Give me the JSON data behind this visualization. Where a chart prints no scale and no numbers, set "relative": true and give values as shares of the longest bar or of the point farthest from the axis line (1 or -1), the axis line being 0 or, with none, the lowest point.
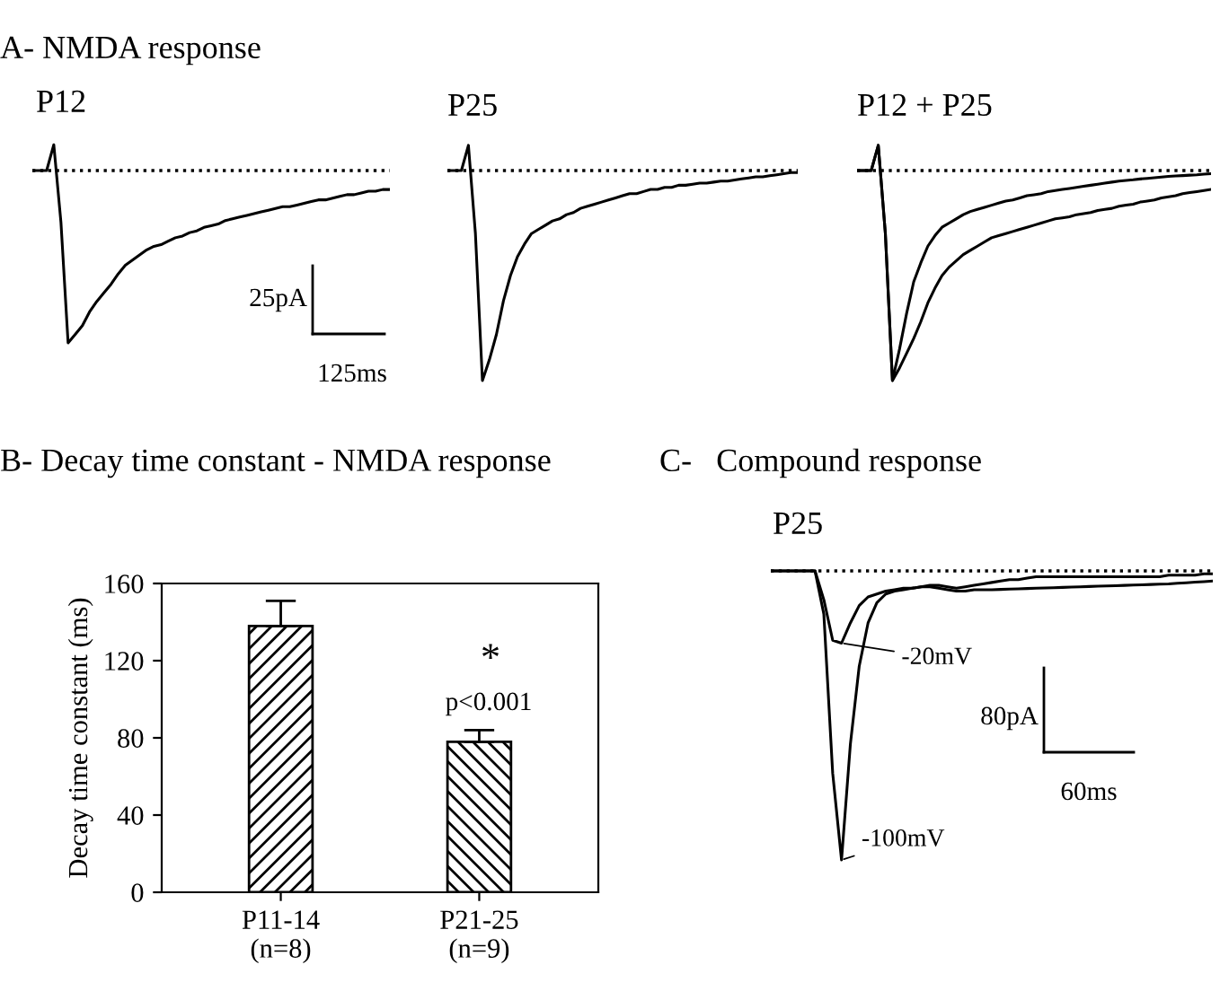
{
  "chart_data": [
    {
      "type": "line",
      "title": "A- NMDA response",
      "subtitle": "P12",
      "relative": true,
      "ref_lines": [
        {
          "axis": "y",
          "value": 0,
          "line_style": "dotted",
          "color": "#000000"
        }
      ],
      "annotations": [
        "25pA",
        "125ms"
      ],
      "categories": [
        null,
        null,
        null,
        null,
        null,
        null,
        null,
        null,
        null,
        null,
        null,
        null,
        null,
        null,
        null,
        null,
        null,
        null,
        null,
        null,
        null,
        null,
        null,
        null,
        null,
        null,
        null,
        null,
        null,
        null,
        null,
        null,
        null,
        null,
        null,
        null,
        null,
        null,
        null,
        null,
        null,
        null,
        null,
        null,
        null,
        null,
        null,
        null,
        null,
        null,
        null
      ],
      "series": [
        {
          "color": "#000000",
          "values": [
            0,
            0,
            0,
            0.15,
            -0.3,
            -1,
            -0.95,
            -0.9,
            -0.82,
            -0.76,
            -0.71,
            -0.66,
            -0.6,
            -0.55,
            -0.52,
            -0.49,
            -0.46,
            -0.44,
            -0.43,
            -0.41,
            -0.39,
            -0.38,
            -0.36,
            -0.35,
            -0.33,
            -0.32,
            -0.31,
            -0.29,
            -0.28,
            -0.27,
            -0.26,
            -0.25,
            -0.24,
            -0.23,
            -0.22,
            -0.21,
            -0.21,
            -0.2,
            -0.19,
            -0.18,
            -0.17,
            -0.17,
            -0.16,
            -0.15,
            -0.14,
            -0.14,
            -0.13,
            -0.12,
            -0.12,
            -0.11,
            -0.11
          ]
        }
      ]
    },
    {
      "type": "line",
      "subtitle": "P25",
      "relative": true,
      "ref_lines": [
        {
          "axis": "y",
          "value": 0,
          "line_style": "dotted",
          "color": "#000000"
        }
      ],
      "categories": [
        null,
        null,
        null,
        null,
        null,
        null,
        null,
        null,
        null,
        null,
        null,
        null,
        null,
        null,
        null,
        null,
        null,
        null,
        null,
        null,
        null,
        null,
        null,
        null,
        null,
        null,
        null,
        null,
        null,
        null,
        null,
        null,
        null,
        null,
        null,
        null,
        null,
        null,
        null,
        null,
        null,
        null,
        null,
        null,
        null,
        null,
        null,
        null,
        null,
        null,
        null
      ],
      "series": [
        {
          "color": "#000000",
          "values": [
            0,
            0,
            0,
            0.12,
            -0.3,
            -1,
            -0.9,
            -0.78,
            -0.62,
            -0.5,
            -0.41,
            -0.35,
            -0.3,
            -0.28,
            -0.26,
            -0.24,
            -0.23,
            -0.21,
            -0.2,
            -0.18,
            -0.17,
            -0.16,
            -0.15,
            -0.14,
            -0.13,
            -0.12,
            -0.11,
            -0.11,
            -0.1,
            -0.09,
            -0.09,
            -0.08,
            -0.08,
            -0.07,
            -0.07,
            -0.065,
            -0.06,
            -0.06,
            -0.055,
            -0.05,
            -0.05,
            -0.045,
            -0.04,
            -0.035,
            -0.03,
            -0.03,
            -0.025,
            -0.02,
            -0.015,
            -0.01,
            -0.01
          ]
        }
      ]
    },
    {
      "type": "line",
      "subtitle": "P12 + P25",
      "relative": true,
      "ref_lines": [
        {
          "axis": "y",
          "value": 0,
          "line_style": "dotted",
          "color": "#000000"
        }
      ],
      "categories": [
        null,
        null,
        null,
        null,
        null,
        null,
        null,
        null,
        null,
        null,
        null,
        null,
        null,
        null,
        null,
        null,
        null,
        null,
        null,
        null,
        null,
        null,
        null,
        null,
        null,
        null,
        null,
        null,
        null,
        null,
        null,
        null,
        null,
        null,
        null,
        null,
        null,
        null,
        null,
        null,
        null,
        null,
        null,
        null,
        null,
        null,
        null,
        null,
        null,
        null,
        null
      ],
      "series": [
        {
          "color": "#000000",
          "values": [
            0,
            0,
            0,
            0.12,
            -0.3,
            -1,
            -0.85,
            -0.68,
            -0.53,
            -0.44,
            -0.36,
            -0.31,
            -0.27,
            -0.25,
            -0.23,
            -0.21,
            -0.195,
            -0.185,
            -0.175,
            -0.165,
            -0.155,
            -0.145,
            -0.14,
            -0.13,
            -0.12,
            -0.115,
            -0.11,
            -0.1,
            -0.095,
            -0.09,
            -0.085,
            -0.08,
            -0.075,
            -0.07,
            -0.065,
            -0.06,
            -0.055,
            -0.05,
            -0.047,
            -0.044,
            -0.04,
            -0.037,
            -0.034,
            -0.031,
            -0.028,
            -0.026,
            -0.024,
            -0.022,
            -0.02,
            -0.017,
            -0.015
          ]
        },
        {
          "color": "#000000",
          "values": [
            0,
            0,
            0,
            0.12,
            -0.3,
            -1,
            -0.94,
            -0.87,
            -0.8,
            -0.72,
            -0.63,
            -0.56,
            -0.5,
            -0.46,
            -0.43,
            -0.4,
            -0.38,
            -0.36,
            -0.34,
            -0.32,
            -0.31,
            -0.3,
            -0.29,
            -0.28,
            -0.27,
            -0.26,
            -0.25,
            -0.24,
            -0.23,
            -0.225,
            -0.22,
            -0.21,
            -0.205,
            -0.2,
            -0.19,
            -0.185,
            -0.18,
            -0.17,
            -0.165,
            -0.16,
            -0.15,
            -0.145,
            -0.14,
            -0.13,
            -0.125,
            -0.12,
            -0.11,
            -0.105,
            -0.1,
            -0.095,
            -0.09
          ]
        }
      ]
    },
    {
      "type": "bar",
      "title": "B- Decay time constant - NMDA response",
      "ylabel": "Decay time constant (ms)",
      "categories": [
        "P11-14\n(n=8)",
        "P21-25\n(n=9)"
      ],
      "values": [
        138,
        78
      ],
      "errors": [
        [
          138,
          151
        ],
        [
          78,
          84
        ]
      ],
      "color": "#000000",
      "ylim": [
        0,
        160
      ],
      "yticks": [
        0,
        40,
        80,
        120,
        160
      ],
      "annotations": [
        "*",
        "p<0.001"
      ]
    },
    {
      "type": "line",
      "title": "C-   Compound response",
      "subtitle": "P25",
      "relative": true,
      "ref_lines": [
        {
          "axis": "y",
          "value": 0,
          "line_style": "dotted",
          "color": "#000000"
        }
      ],
      "annotations": [
        "80pA",
        "60ms"
      ],
      "categories": [
        null,
        null,
        null,
        null,
        null,
        null,
        null,
        null,
        null,
        null,
        null,
        null,
        null,
        null,
        null,
        null,
        null,
        null,
        null,
        null,
        null,
        null,
        null,
        null,
        null,
        null,
        null,
        null,
        null,
        null,
        null,
        null,
        null,
        null,
        null,
        null,
        null,
        null,
        null,
        null,
        null,
        null,
        null,
        null,
        null,
        null,
        null,
        null,
        null,
        null,
        null
      ],
      "series": [
        {
          "name": "-20mV",
          "color": "#000000",
          "values": [
            0,
            0,
            0,
            0,
            0,
            0,
            -0.1,
            -0.24,
            -0.25,
            -0.18,
            -0.12,
            -0.09,
            -0.08,
            -0.07,
            -0.065,
            -0.06,
            -0.06,
            -0.055,
            -0.055,
            -0.06,
            -0.065,
            -0.07,
            -0.07,
            -0.065,
            -0.065,
            -0.065,
            -0.064,
            -0.063,
            -0.062,
            -0.061,
            -0.06,
            -0.059,
            -0.058,
            -0.057,
            -0.056,
            -0.055,
            -0.054,
            -0.053,
            -0.052,
            -0.051,
            -0.05,
            -0.049,
            -0.048,
            -0.047,
            -0.046,
            -0.045,
            -0.043,
            -0.041,
            -0.039,
            -0.037,
            -0.035
          ]
        },
        {
          "name": "-100mV",
          "color": "#000000",
          "values": [
            0,
            0,
            0,
            0,
            0,
            0,
            -0.15,
            -0.7,
            -1,
            -0.6,
            -0.33,
            -0.18,
            -0.11,
            -0.08,
            -0.07,
            -0.065,
            -0.06,
            -0.055,
            -0.05,
            -0.05,
            -0.055,
            -0.06,
            -0.055,
            -0.05,
            -0.045,
            -0.04,
            -0.035,
            -0.03,
            -0.03,
            -0.025,
            -0.02,
            -0.02,
            -0.02,
            -0.02,
            -0.02,
            -0.02,
            -0.02,
            -0.02,
            -0.02,
            -0.02,
            -0.02,
            -0.02,
            -0.02,
            -0.02,
            -0.02,
            -0.015,
            -0.015,
            -0.015,
            -0.015,
            -0.01,
            -0.01
          ]
        }
      ]
    }
  ]
}
